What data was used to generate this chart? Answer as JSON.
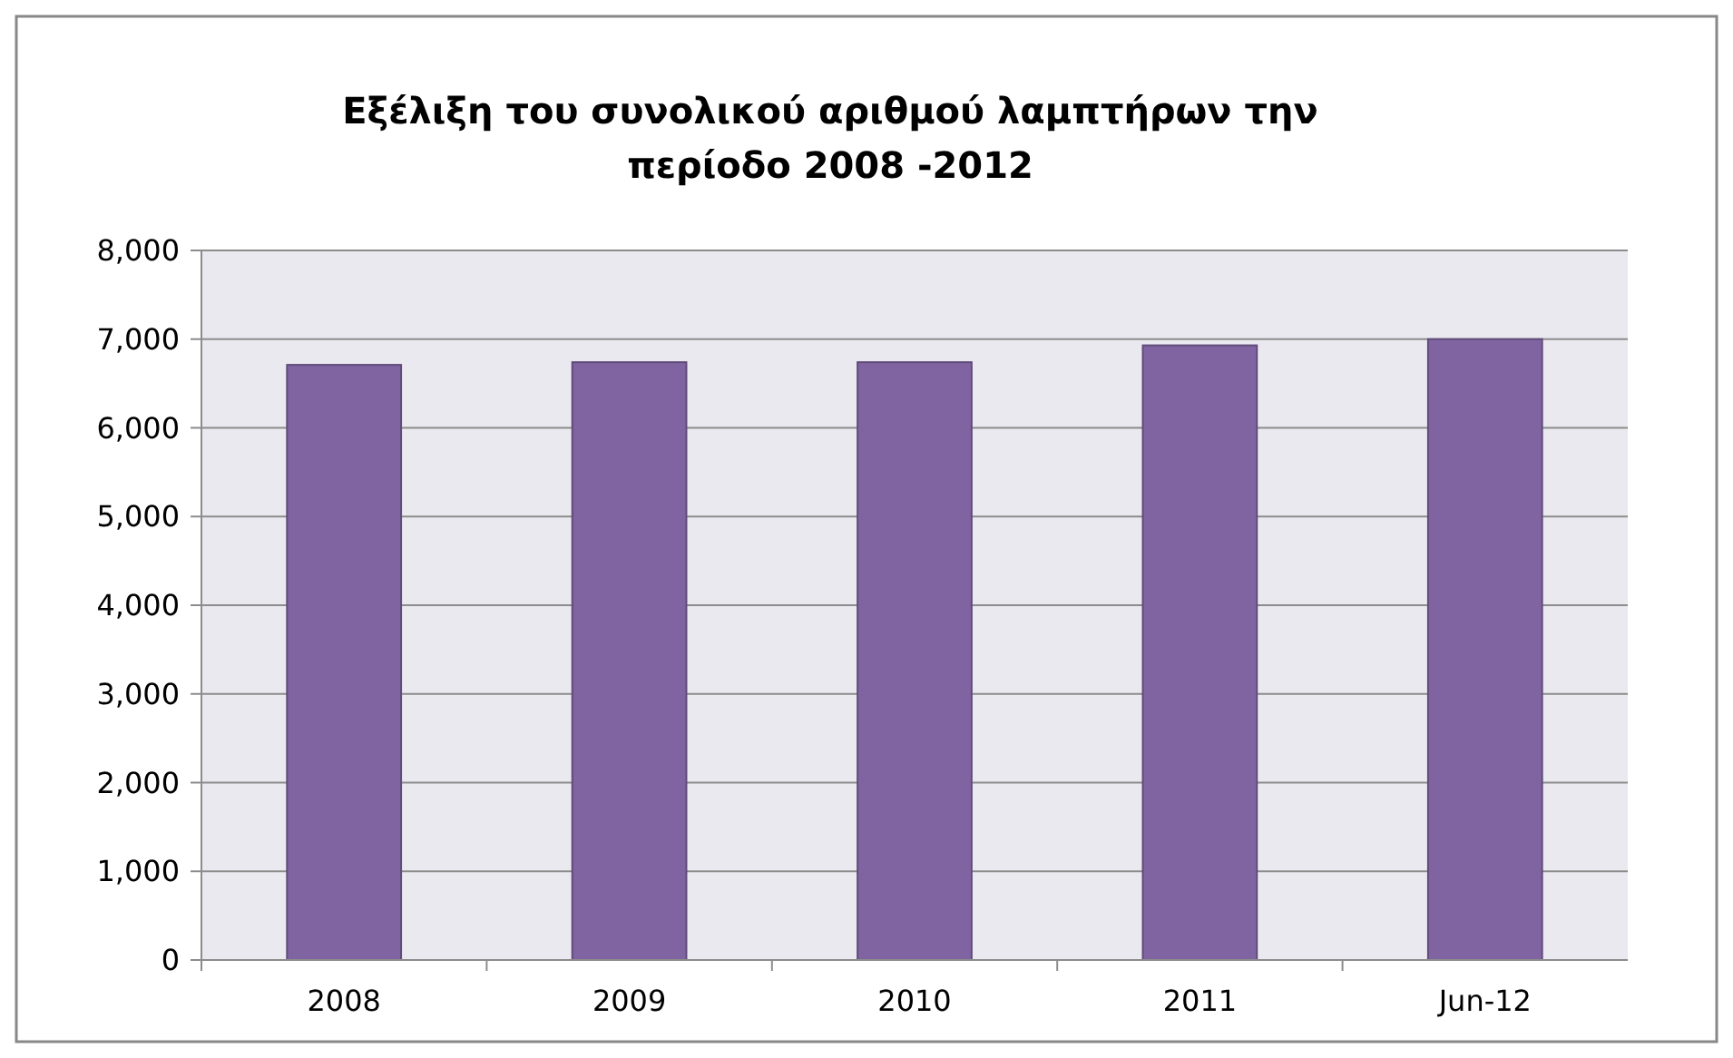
{
  "chart_data": {
    "type": "bar",
    "title": "Εξέλιξη του συνολικού αριθμού λαμπτήρων την περίοδο 2008 -2012",
    "categories": [
      "2008",
      "2009",
      "2010",
      "2011",
      "Jun-12"
    ],
    "values": [
      6710,
      6740,
      6740,
      6930,
      7000
    ],
    "color": "#8064a2",
    "ylim": [
      0,
      8000
    ],
    "yticks": [
      {
        "value": 0,
        "label": "0"
      },
      {
        "value": 1000,
        "label": "1,000"
      },
      {
        "value": 2000,
        "label": "2,000"
      },
      {
        "value": 3000,
        "label": "3,000"
      },
      {
        "value": 4000,
        "label": "4,000"
      },
      {
        "value": 5000,
        "label": "5,000"
      },
      {
        "value": 6000,
        "label": "6,000"
      },
      {
        "value": 7000,
        "label": "7,000"
      },
      {
        "value": 8000,
        "label": "8,000"
      }
    ],
    "grid": "y"
  }
}
